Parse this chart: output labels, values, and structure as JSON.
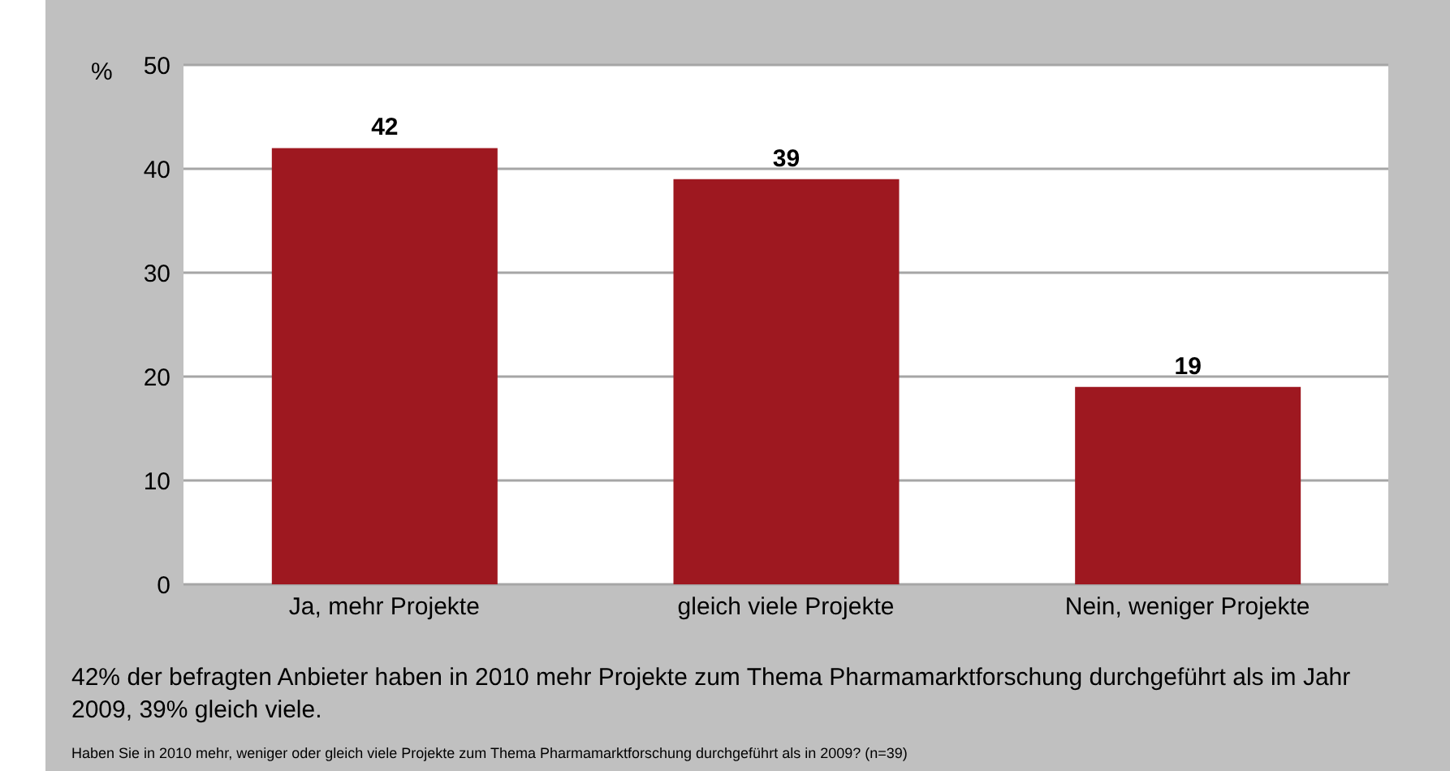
{
  "chart_data": {
    "type": "bar",
    "ylabel": "%",
    "categories": [
      "Ja, mehr Projekte",
      "gleich viele Projekte",
      "Nein, weniger Projekte"
    ],
    "values": [
      42,
      39,
      19
    ],
    "color": "#9e1820",
    "data_labels": true,
    "ylim": [
      0,
      50
    ],
    "yticks": [
      0,
      10,
      20,
      30,
      40,
      50
    ],
    "grid": "y",
    "legend": false,
    "annotations": [
      "42% der befragten Anbieter haben in 2010 mehr Projekte zum Thema Pharmamarktforschung durchgeführt als im Jahr 2009, 39% gleich viele.",
      "Haben Sie in 2010 mehr, weniger oder gleich viele Projekte zum Thema Pharmamarktforschung durchgeführt als in 2009? (n=39)"
    ]
  }
}
